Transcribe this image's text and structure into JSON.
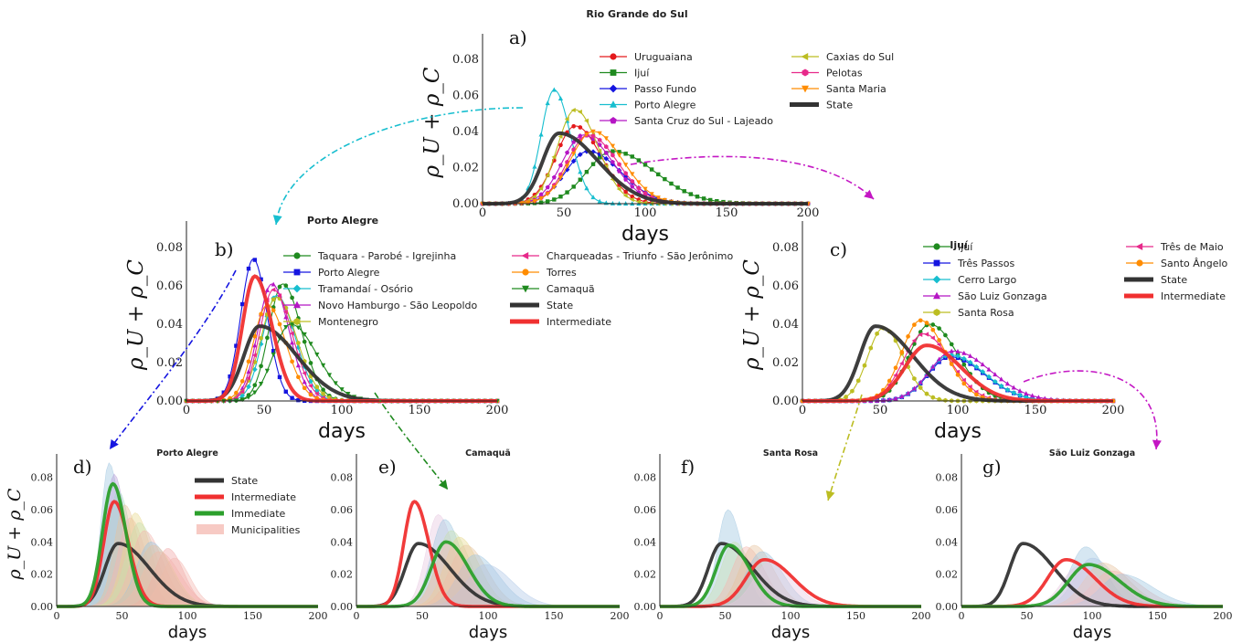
{
  "chart_data": [
    {
      "id": "a",
      "type": "line",
      "panel_label": "a)",
      "title": "Rio Grande do Sul",
      "xlabel": "days",
      "ylabel": "ρ_U + ρ_C",
      "xlim": [
        0,
        200
      ],
      "ylim": [
        0,
        0.09
      ],
      "xticks": [
        "0",
        "50",
        "100",
        "150",
        "200"
      ],
      "yticks": [
        "0.00",
        "0.02",
        "0.04",
        "0.06",
        "0.08"
      ],
      "legend_position": "top-right",
      "series": [
        {
          "name": "Uruguaiana",
          "color": "#e41a1c",
          "marker": "circle",
          "peak_x": 57,
          "peak_y": 0.043,
          "sigma_l": 12,
          "sigma_r": 16
        },
        {
          "name": "Ijuí",
          "color": "#1f8a1f",
          "marker": "square",
          "peak_x": 80,
          "peak_y": 0.029,
          "sigma_l": 16,
          "sigma_r": 26
        },
        {
          "name": "Passo Fundo",
          "color": "#1515e0",
          "marker": "diamond",
          "peak_x": 65,
          "peak_y": 0.029,
          "sigma_l": 14,
          "sigma_r": 20
        },
        {
          "name": "Porto Alegre",
          "color": "#17becf",
          "marker": "triangle-up",
          "peak_x": 44,
          "peak_y": 0.063,
          "sigma_l": 8,
          "sigma_r": 10
        },
        {
          "name": "Santa Cruz do Sul - Lajeado",
          "color": "#b515c4",
          "marker": "pentagon",
          "peak_x": 62,
          "peak_y": 0.038,
          "sigma_l": 13,
          "sigma_r": 18
        },
        {
          "name": "Caxias do Sul",
          "color": "#bcbd22",
          "marker": "triangle-left",
          "peak_x": 57,
          "peak_y": 0.052,
          "sigma_l": 11,
          "sigma_r": 14
        },
        {
          "name": "Pelotas",
          "color": "#e7298a",
          "marker": "hexagon",
          "peak_x": 65,
          "peak_y": 0.038,
          "sigma_l": 13,
          "sigma_r": 18
        },
        {
          "name": "Santa Maria",
          "color": "#ff8c00",
          "marker": "triangle-down",
          "peak_x": 68,
          "peak_y": 0.04,
          "sigma_l": 14,
          "sigma_r": 18
        },
        {
          "name": "State",
          "color": "#333333",
          "marker": "none",
          "peak_x": 47,
          "peak_y": 0.039,
          "sigma_l": 10,
          "sigma_r": 24
        }
      ]
    },
    {
      "id": "b",
      "type": "line",
      "panel_label": "b)",
      "title": "Porto Alegre",
      "xlabel": "days",
      "ylabel": "ρ_U + ρ_C",
      "xlim": [
        0,
        200
      ],
      "ylim": [
        0,
        0.09
      ],
      "xticks": [
        "0",
        "50",
        "100",
        "150",
        "200"
      ],
      "yticks": [
        "0.00",
        "0.02",
        "0.04",
        "0.06",
        "0.08"
      ],
      "legend_position": "top-right",
      "series": [
        {
          "name": "Taquara - Parobé - Igrejinha",
          "color": "#1f8a1f",
          "marker": "circle",
          "peak_x": 62,
          "peak_y": 0.061,
          "sigma_l": 9,
          "sigma_r": 12
        },
        {
          "name": "Porto Alegre",
          "color": "#1515e0",
          "marker": "square",
          "peak_x": 43,
          "peak_y": 0.074,
          "sigma_l": 8,
          "sigma_r": 9
        },
        {
          "name": "Tramandaí - Osório",
          "color": "#17becf",
          "marker": "diamond",
          "peak_x": 58,
          "peak_y": 0.055,
          "sigma_l": 9,
          "sigma_r": 12
        },
        {
          "name": "Novo Hamburgo - São Leopoldo",
          "color": "#b515c4",
          "marker": "triangle-up",
          "peak_x": 55,
          "peak_y": 0.061,
          "sigma_l": 9,
          "sigma_r": 11
        },
        {
          "name": "Montenegro",
          "color": "#bcbd22",
          "marker": "hexagon",
          "peak_x": 58,
          "peak_y": 0.054,
          "sigma_l": 10,
          "sigma_r": 13
        },
        {
          "name": "Charqueadas - Triunfo - São Jerônimo",
          "color": "#e7298a",
          "marker": "triangle-left",
          "peak_x": 56,
          "peak_y": 0.058,
          "sigma_l": 9,
          "sigma_r": 12
        },
        {
          "name": "Torres",
          "color": "#ff8c00",
          "marker": "circle",
          "peak_x": 52,
          "peak_y": 0.05,
          "sigma_l": 9,
          "sigma_r": 12
        },
        {
          "name": "Camaquã",
          "color": "#1f8a1f",
          "marker": "triangle-down",
          "peak_x": 67,
          "peak_y": 0.04,
          "sigma_l": 11,
          "sigma_r": 17
        },
        {
          "name": "State",
          "color": "#333333",
          "marker": "none",
          "peak_x": 47,
          "peak_y": 0.039,
          "sigma_l": 10,
          "sigma_r": 24
        },
        {
          "name": "Intermediate",
          "color": "#f03030",
          "marker": "none",
          "peak_x": 44,
          "peak_y": 0.065,
          "sigma_l": 8,
          "sigma_r": 11
        }
      ]
    },
    {
      "id": "c",
      "type": "line",
      "panel_label": "c)",
      "title": "Ijuí",
      "xlabel": "days",
      "ylabel": "ρ_U + ρ_C",
      "xlim": [
        0,
        200
      ],
      "ylim": [
        0,
        0.09
      ],
      "xticks": [
        "0",
        "50",
        "100",
        "150",
        "200"
      ],
      "yticks": [
        "0.00",
        "0.02",
        "0.04",
        "0.06",
        "0.08"
      ],
      "legend_position": "top-right",
      "series": [
        {
          "name": "Ijuí",
          "color": "#1f8a1f",
          "marker": "circle",
          "peak_x": 82,
          "peak_y": 0.04,
          "sigma_l": 13,
          "sigma_r": 18
        },
        {
          "name": "Três Passos",
          "color": "#1515e0",
          "marker": "square",
          "peak_x": 95,
          "peak_y": 0.023,
          "sigma_l": 14,
          "sigma_r": 22
        },
        {
          "name": "Cerro Largo",
          "color": "#17becf",
          "marker": "diamond",
          "peak_x": 95,
          "peak_y": 0.024,
          "sigma_l": 14,
          "sigma_r": 22
        },
        {
          "name": "São Luiz Gonzaga",
          "color": "#b515c4",
          "marker": "triangle-up",
          "peak_x": 97,
          "peak_y": 0.026,
          "sigma_l": 15,
          "sigma_r": 24
        },
        {
          "name": "Santa Rosa",
          "color": "#bcbd22",
          "marker": "hexagon",
          "peak_x": 52,
          "peak_y": 0.038,
          "sigma_l": 10,
          "sigma_r": 13
        },
        {
          "name": "Três de Maio",
          "color": "#e7298a",
          "marker": "triangle-left",
          "peak_x": 78,
          "peak_y": 0.035,
          "sigma_l": 13,
          "sigma_r": 17
        },
        {
          "name": "Santo Ângelo",
          "color": "#ff8c00",
          "marker": "circle",
          "peak_x": 76,
          "peak_y": 0.042,
          "sigma_l": 12,
          "sigma_r": 16
        },
        {
          "name": "State",
          "color": "#333333",
          "marker": "none",
          "peak_x": 47,
          "peak_y": 0.039,
          "sigma_l": 10,
          "sigma_r": 24
        },
        {
          "name": "Intermediate",
          "color": "#f03030",
          "marker": "none",
          "peak_x": 80,
          "peak_y": 0.029,
          "sigma_l": 14,
          "sigma_r": 22
        }
      ]
    },
    {
      "id": "d",
      "type": "area",
      "panel_label": "d)",
      "title": "Porto Alegre",
      "xlabel": "days",
      "ylabel": "ρ_U + ρ_C",
      "xlim": [
        0,
        200
      ],
      "ylim": [
        0,
        0.09
      ],
      "xticks": [
        "0",
        "50",
        "100",
        "150",
        "200"
      ],
      "yticks": [
        "0.00",
        "0.02",
        "0.04",
        "0.06",
        "0.08"
      ],
      "legend_position": "top-right",
      "legend": [
        {
          "name": "State",
          "color": "#333333",
          "kind": "line"
        },
        {
          "name": "Intermediate",
          "color": "#f03030",
          "kind": "line"
        },
        {
          "name": "Immediate",
          "color": "#2ca02c",
          "kind": "line"
        },
        {
          "name": "Municipalities",
          "color": "#f4b8b0",
          "kind": "patch"
        }
      ],
      "lines": [
        {
          "name": "State",
          "color": "#333333",
          "peak_x": 47,
          "peak_y": 0.039,
          "sigma_l": 10,
          "sigma_r": 24
        },
        {
          "name": "Intermediate",
          "color": "#f03030",
          "peak_x": 44,
          "peak_y": 0.065,
          "sigma_l": 8,
          "sigma_r": 11
        },
        {
          "name": "Immediate",
          "color": "#2ca02c",
          "peak_x": 43,
          "peak_y": 0.076,
          "sigma_l": 8,
          "sigma_r": 10
        }
      ],
      "municipalities": [
        {
          "peak_x": 40,
          "peak_y": 0.089,
          "sigma_l": 6,
          "sigma_r": 9,
          "color": "#9ec5e0"
        },
        {
          "peak_x": 44,
          "peak_y": 0.082,
          "sigma_l": 7,
          "sigma_r": 9,
          "color": "#b9a0d8"
        },
        {
          "peak_x": 47,
          "peak_y": 0.072,
          "sigma_l": 8,
          "sigma_r": 10,
          "color": "#a8d8c8"
        },
        {
          "peak_x": 52,
          "peak_y": 0.063,
          "sigma_l": 8,
          "sigma_r": 11,
          "color": "#e6c4a0"
        },
        {
          "peak_x": 56,
          "peak_y": 0.055,
          "sigma_l": 9,
          "sigma_r": 12,
          "color": "#f4b8b0"
        },
        {
          "peak_x": 60,
          "peak_y": 0.058,
          "sigma_l": 9,
          "sigma_r": 12,
          "color": "#e8d890"
        },
        {
          "peak_x": 63,
          "peak_y": 0.052,
          "sigma_l": 10,
          "sigma_r": 13,
          "color": "#c8e0b0"
        },
        {
          "peak_x": 67,
          "peak_y": 0.047,
          "sigma_l": 10,
          "sigma_r": 14,
          "color": "#f4b8b0"
        },
        {
          "peak_x": 72,
          "peak_y": 0.04,
          "sigma_l": 11,
          "sigma_r": 15,
          "color": "#9ec5e0"
        },
        {
          "peak_x": 78,
          "peak_y": 0.034,
          "sigma_l": 12,
          "sigma_r": 16,
          "color": "#f4b8b0"
        },
        {
          "peak_x": 85,
          "peak_y": 0.036,
          "sigma_l": 10,
          "sigma_r": 12,
          "color": "#f0a8a8"
        },
        {
          "peak_x": 90,
          "peak_y": 0.03,
          "sigma_l": 10,
          "sigma_r": 12,
          "color": "#f4b8b0"
        },
        {
          "peak_x": 74,
          "peak_y": 0.038,
          "sigma_l": 12,
          "sigma_r": 15,
          "color": "#e6c4a0"
        }
      ]
    },
    {
      "id": "e",
      "type": "area",
      "panel_label": "e)",
      "title": "Camaquã",
      "xlabel": "days",
      "ylabel": "",
      "xlim": [
        0,
        200
      ],
      "ylim": [
        0,
        0.09
      ],
      "xticks": [
        "0",
        "50",
        "100",
        "150",
        "200"
      ],
      "yticks": [
        "0.00",
        "0.02",
        "0.04",
        "0.06",
        "0.08"
      ],
      "lines": [
        {
          "name": "State",
          "color": "#333333",
          "peak_x": 47,
          "peak_y": 0.039,
          "sigma_l": 10,
          "sigma_r": 24
        },
        {
          "name": "Intermediate",
          "color": "#f03030",
          "peak_x": 44,
          "peak_y": 0.065,
          "sigma_l": 8,
          "sigma_r": 11
        },
        {
          "name": "Immediate",
          "color": "#2ca02c",
          "peak_x": 68,
          "peak_y": 0.04,
          "sigma_l": 11,
          "sigma_r": 17
        }
      ],
      "municipalities": [
        {
          "peak_x": 62,
          "peak_y": 0.057,
          "sigma_l": 9,
          "sigma_r": 12,
          "color": "#e8c8e0"
        },
        {
          "peak_x": 67,
          "peak_y": 0.054,
          "sigma_l": 10,
          "sigma_r": 13,
          "color": "#9ec5e0"
        },
        {
          "peak_x": 72,
          "peak_y": 0.047,
          "sigma_l": 11,
          "sigma_r": 14,
          "color": "#c8e0b0"
        },
        {
          "peak_x": 78,
          "peak_y": 0.043,
          "sigma_l": 11,
          "sigma_r": 15,
          "color": "#e8d890"
        },
        {
          "peak_x": 83,
          "peak_y": 0.038,
          "sigma_l": 12,
          "sigma_r": 16,
          "color": "#e6c4a0"
        },
        {
          "peak_x": 90,
          "peak_y": 0.032,
          "sigma_l": 13,
          "sigma_r": 18,
          "color": "#9ec5e0"
        },
        {
          "peak_x": 98,
          "peak_y": 0.026,
          "sigma_l": 14,
          "sigma_r": 20,
          "color": "#b0c8e8"
        },
        {
          "peak_x": 70,
          "peak_y": 0.04,
          "sigma_l": 10,
          "sigma_r": 14,
          "color": "#f4b8b0"
        }
      ]
    },
    {
      "id": "f",
      "type": "area",
      "panel_label": "f)",
      "title": "Santa Rosa",
      "xlabel": "days",
      "ylabel": "",
      "xlim": [
        0,
        200
      ],
      "ylim": [
        0,
        0.09
      ],
      "xticks": [
        "0",
        "50",
        "100",
        "150",
        "200"
      ],
      "yticks": [
        "0.00",
        "0.02",
        "0.04",
        "0.06",
        "0.08"
      ],
      "lines": [
        {
          "name": "State",
          "color": "#333333",
          "peak_x": 47,
          "peak_y": 0.039,
          "sigma_l": 10,
          "sigma_r": 24
        },
        {
          "name": "Intermediate",
          "color": "#f03030",
          "peak_x": 80,
          "peak_y": 0.029,
          "sigma_l": 14,
          "sigma_r": 22
        },
        {
          "name": "Immediate",
          "color": "#2ca02c",
          "peak_x": 53,
          "peak_y": 0.038,
          "sigma_l": 10,
          "sigma_r": 16
        }
      ],
      "municipalities": [
        {
          "peak_x": 52,
          "peak_y": 0.06,
          "sigma_l": 8,
          "sigma_r": 11,
          "color": "#9ec5e0"
        },
        {
          "peak_x": 57,
          "peak_y": 0.04,
          "sigma_l": 10,
          "sigma_r": 13,
          "color": "#c8e0b0"
        },
        {
          "peak_x": 66,
          "peak_y": 0.037,
          "sigma_l": 11,
          "sigma_r": 14,
          "color": "#f4b8b0"
        },
        {
          "peak_x": 72,
          "peak_y": 0.038,
          "sigma_l": 11,
          "sigma_r": 15,
          "color": "#e6c4a0"
        },
        {
          "peak_x": 78,
          "peak_y": 0.034,
          "sigma_l": 12,
          "sigma_r": 16,
          "color": "#9ec5e0"
        },
        {
          "peak_x": 85,
          "peak_y": 0.028,
          "sigma_l": 13,
          "sigma_r": 17,
          "color": "#e8c8e0"
        }
      ]
    },
    {
      "id": "g",
      "type": "area",
      "panel_label": "g)",
      "title": "São Luiz Gonzaga",
      "xlabel": "days",
      "ylabel": "",
      "xlim": [
        0,
        200
      ],
      "ylim": [
        0,
        0.09
      ],
      "xticks": [
        "0",
        "50",
        "100",
        "150",
        "200"
      ],
      "yticks": [
        "0.00",
        "0.02",
        "0.04",
        "0.06",
        "0.08"
      ],
      "lines": [
        {
          "name": "State",
          "color": "#333333",
          "peak_x": 47,
          "peak_y": 0.039,
          "sigma_l": 10,
          "sigma_r": 24
        },
        {
          "name": "Intermediate",
          "color": "#f03030",
          "peak_x": 80,
          "peak_y": 0.029,
          "sigma_l": 14,
          "sigma_r": 22
        },
        {
          "name": "Immediate",
          "color": "#2ca02c",
          "peak_x": 97,
          "peak_y": 0.026,
          "sigma_l": 15,
          "sigma_r": 24
        }
      ],
      "municipalities": [
        {
          "peak_x": 95,
          "peak_y": 0.037,
          "sigma_l": 12,
          "sigma_r": 15,
          "color": "#9ec5e0"
        },
        {
          "peak_x": 100,
          "peak_y": 0.03,
          "sigma_l": 13,
          "sigma_r": 18,
          "color": "#b0c8e8"
        },
        {
          "peak_x": 108,
          "peak_y": 0.027,
          "sigma_l": 14,
          "sigma_r": 20,
          "color": "#e6c4a0"
        },
        {
          "peak_x": 115,
          "peak_y": 0.022,
          "sigma_l": 15,
          "sigma_r": 22,
          "color": "#f4b8b0"
        },
        {
          "peak_x": 122,
          "peak_y": 0.02,
          "sigma_l": 15,
          "sigma_r": 24,
          "color": "#9ec5e0"
        },
        {
          "peak_x": 90,
          "peak_y": 0.025,
          "sigma_l": 13,
          "sigma_r": 18,
          "color": "#e8c8e0"
        }
      ]
    }
  ],
  "arrows": [
    {
      "from": "a",
      "to": "b",
      "color": "#17becf"
    },
    {
      "from": "a",
      "to": "c",
      "color": "#c417c4"
    },
    {
      "from": "b",
      "to": "d",
      "color": "#1515e0"
    },
    {
      "from": "b",
      "to": "e",
      "color": "#1f8a1f"
    },
    {
      "from": "c",
      "to": "f",
      "color": "#bcbd22"
    },
    {
      "from": "c",
      "to": "g",
      "color": "#c417c4"
    }
  ]
}
